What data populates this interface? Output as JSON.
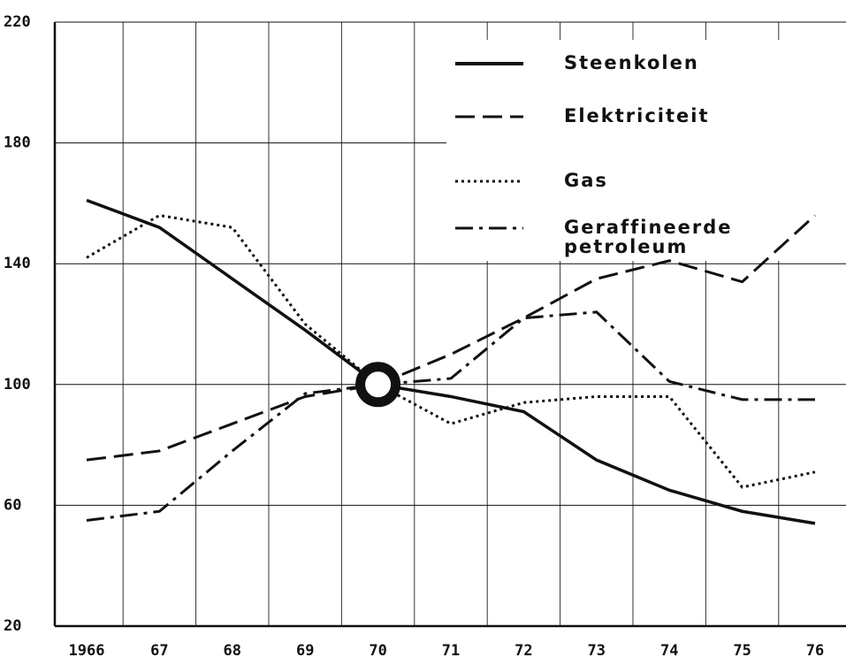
{
  "chart_data": {
    "type": "line",
    "categories": [
      "1966",
      "67",
      "68",
      "69",
      "70",
      "71",
      "72",
      "73",
      "74",
      "75",
      "76"
    ],
    "series": [
      {
        "name": "Steenkolen",
        "color": "#111111",
        "dash": "solid",
        "values": [
          161,
          152,
          135,
          118,
          100,
          96,
          91,
          75,
          65,
          58,
          54
        ]
      },
      {
        "name": "Elektriciteit",
        "color": "#111111",
        "dash": "dashed",
        "values": [
          75,
          78,
          87,
          96,
          100,
          110,
          122,
          135,
          141,
          134,
          156
        ]
      },
      {
        "name": "Gas",
        "color": "#111111",
        "dash": "dotted",
        "values": [
          142,
          156,
          152,
          120,
          100,
          87,
          94,
          96,
          96,
          66,
          71
        ]
      },
      {
        "name": "Geraffineerde petroleum",
        "color": "#111111",
        "dash": "dashdot",
        "values": [
          55,
          58,
          78,
          97,
          100,
          102,
          122,
          124,
          101,
          95,
          95
        ]
      }
    ],
    "ylim": [
      20,
      220
    ],
    "yticks": [
      20,
      60,
      100,
      140,
      180,
      220
    ],
    "grid": true,
    "legend": "upper right"
  }
}
